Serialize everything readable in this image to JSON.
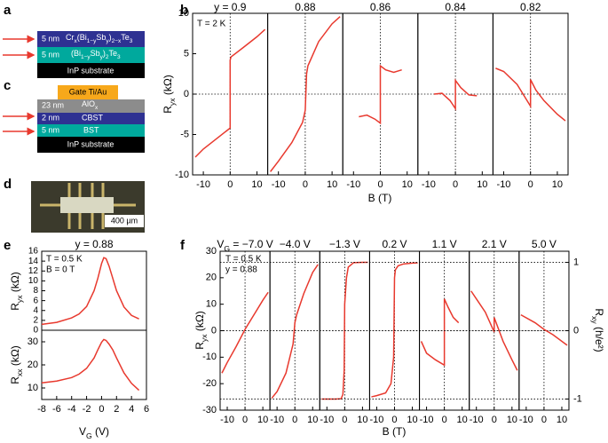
{
  "panel_a": {
    "label": "a",
    "layers": [
      {
        "thickness": "5 nm",
        "material": [
          "Cr",
          "x",
          "(Bi",
          "1−y",
          "Sb",
          "y",
          ")",
          "2−x",
          "Te",
          "3"
        ],
        "color": "#2e3192"
      },
      {
        "thickness": "5 nm",
        "material": [
          "(Bi",
          "1−y",
          "Sb",
          "y",
          ")",
          "2",
          "Te",
          "3"
        ],
        "color": "#00a99d"
      },
      {
        "material": "InP substrate",
        "color": "#000000"
      }
    ]
  },
  "panel_c": {
    "label": "c",
    "gate": "Gate Ti/Au",
    "layers": [
      {
        "thickness": "23 nm",
        "material": [
          "AlO",
          "x"
        ],
        "color": "#8c8c8c"
      },
      {
        "thickness": "2 nm",
        "material": "CBST",
        "color": "#2e3192"
      },
      {
        "thickness": "5 nm",
        "material": "BST",
        "color": "#00a99d"
      },
      {
        "material": "InP substrate",
        "color": "#000000"
      }
    ]
  },
  "panel_d": {
    "label": "d",
    "scale_bar": "400 µm"
  },
  "chart_data": [
    {
      "type": "line",
      "panel": "b",
      "title": "y = 0.9",
      "annotations": [
        "T = 2 K"
      ],
      "xlabel": "B (T)",
      "ylabel": [
        "R",
        "yx",
        " (kΩ)"
      ],
      "x": [
        -13,
        -10,
        -5,
        0,
        0,
        0.3,
        5,
        10,
        13
      ],
      "values": [
        -7.8,
        -6.8,
        -5.5,
        -4.2,
        4.2,
        4.6,
        5.8,
        7.1,
        8.0
      ],
      "color": "#e8392e",
      "xlim": [
        -14,
        14
      ],
      "xticks": [
        -10,
        0,
        10
      ],
      "ylim": [
        -10,
        10
      ],
      "yticks": [
        -10,
        -5,
        0,
        5,
        10
      ],
      "zero_lines": true
    },
    {
      "type": "line",
      "title": "0.88",
      "x": [
        -13,
        -10,
        -5,
        -1,
        0,
        0.5,
        1,
        5,
        10,
        13
      ],
      "values": [
        -9.6,
        -8.3,
        -6,
        -3.5,
        -2,
        2.5,
        3.5,
        6.5,
        8.7,
        9.6
      ],
      "color": "#e8392e",
      "xlim": [
        -14,
        14
      ],
      "xticks": [
        -10,
        0,
        10
      ],
      "ylim": [
        -10,
        10
      ],
      "zero_lines": true
    },
    {
      "type": "line",
      "title": "0.86",
      "x": [
        -8,
        -5,
        -2,
        0,
        0,
        2,
        5,
        8
      ],
      "values": [
        -2.8,
        -2.6,
        -3.1,
        -3.6,
        3.5,
        3.0,
        2.7,
        3.0
      ],
      "color": "#e8392e",
      "xlim": [
        -14,
        14
      ],
      "xticks": [
        -10,
        0,
        10
      ],
      "ylim": [
        -10,
        10
      ],
      "zero_lines": true
    },
    {
      "type": "line",
      "title": "0.84",
      "x": [
        -8,
        -5,
        -2,
        0,
        0,
        2,
        5,
        8
      ],
      "values": [
        0,
        0.1,
        -0.8,
        -1.8,
        1.7,
        0.8,
        -0.1,
        -0.2
      ],
      "color": "#e8392e",
      "xlim": [
        -14,
        14
      ],
      "xticks": [
        -10,
        0,
        10
      ],
      "ylim": [
        -10,
        10
      ],
      "zero_lines": true
    },
    {
      "type": "line",
      "title": "0.82",
      "x": [
        -13,
        -10,
        -5,
        0,
        0,
        2,
        5,
        10,
        13
      ],
      "values": [
        3.2,
        2.8,
        1.2,
        -1.5,
        1.8,
        0.5,
        -0.8,
        -2.5,
        -3.3
      ],
      "color": "#e8392e",
      "xlim": [
        -14,
        14
      ],
      "xticks": [
        -10,
        0,
        10
      ],
      "ylim": [
        -10,
        10
      ],
      "zero_lines": true
    },
    {
      "type": "line",
      "panel": "e",
      "title": "y = 0.88",
      "annotations": [
        "T = 0.5 K",
        "B = 0 T"
      ],
      "ylabel": [
        "R",
        "yx",
        " (kΩ)"
      ],
      "x": [
        -8,
        -6,
        -4,
        -3,
        -2,
        -1,
        -0.5,
        0,
        0.3,
        0.6,
        1,
        1.5,
        2,
        3,
        4,
        5
      ],
      "values": [
        1.2,
        1.6,
        2.5,
        3.3,
        4.8,
        8,
        10.5,
        13.5,
        14.7,
        14.5,
        13,
        10.5,
        8,
        4.7,
        3,
        2.3
      ],
      "color": "#e8392e",
      "xlim": [
        -8,
        6
      ],
      "ylim": [
        0,
        16
      ],
      "yticks": [
        0,
        2,
        4,
        6,
        8,
        10,
        12,
        14,
        16
      ]
    },
    {
      "type": "line",
      "xlabel": [
        "V",
        "G",
        " (V)"
      ],
      "ylabel": [
        "R",
        "xx",
        " (kΩ)"
      ],
      "x": [
        -8,
        -6,
        -4,
        -3,
        -2,
        -1,
        -0.5,
        0,
        0.3,
        0.6,
        1,
        1.5,
        2,
        3,
        4,
        5
      ],
      "values": [
        12.2,
        13,
        14.5,
        16,
        18.5,
        23,
        26.5,
        29.8,
        31,
        30.6,
        29,
        26.5,
        23,
        16.5,
        12,
        9
      ],
      "color": "#e8392e",
      "xlim": [
        -8,
        6
      ],
      "xticks": [
        -8,
        -6,
        -4,
        -2,
        0,
        2,
        4,
        6
      ],
      "ylim": [
        5,
        35
      ],
      "yticks": [
        10,
        20,
        30
      ]
    },
    {
      "type": "line",
      "panel": "f",
      "title": [
        "V",
        "G",
        " = −7.0 V"
      ],
      "annotations": [
        "T = 0.5 K",
        "y = 0.88"
      ],
      "xlabel": "B (T)",
      "ylabel": [
        "R",
        "yx",
        " (kΩ)"
      ],
      "x": [
        -13,
        -10,
        -5,
        0,
        5,
        10,
        13
      ],
      "values": [
        -16,
        -12,
        -6,
        0.5,
        6,
        11.5,
        14.5
      ],
      "color": "#e8392e",
      "xlim": [
        -14,
        14
      ],
      "xticks": [
        -10,
        0,
        10
      ],
      "ylim": [
        -30,
        30
      ],
      "yticks": [
        -30,
        -20,
        -10,
        0,
        10,
        20,
        30
      ],
      "zero_lines": true
    },
    {
      "type": "line",
      "title": "−4.0 V",
      "x": [
        -13,
        -10,
        -5,
        -1,
        0,
        1,
        5,
        10,
        13
      ],
      "values": [
        -25.5,
        -23,
        -16,
        -5,
        3,
        6,
        14,
        22,
        25
      ],
      "color": "#e8392e",
      "xlim": [
        -14,
        14
      ],
      "xticks": [
        -10,
        0,
        10
      ],
      "ylim": [
        -30,
        30
      ],
      "zero_lines": true
    },
    {
      "type": "line",
      "title": "−1.3 V",
      "x": [
        -13,
        -10,
        -5,
        -2,
        -1,
        -0.3,
        0,
        0.5,
        1,
        2,
        5,
        10,
        13
      ],
      "values": [
        -25.8,
        -25.8,
        -25.8,
        -25.7,
        -24,
        -15,
        10,
        15,
        20,
        24,
        25.7,
        25.8,
        25.8
      ],
      "color": "#e8392e",
      "xlim": [
        -14,
        14
      ],
      "xticks": [
        -10,
        0,
        10
      ],
      "ylim": [
        -30,
        30
      ],
      "zero_lines": true
    },
    {
      "type": "line",
      "title": "0.2 V",
      "x": [
        -13,
        -10,
        -5,
        -2,
        -0.5,
        0,
        0.5,
        2,
        5,
        10,
        13
      ],
      "values": [
        -25,
        -24.5,
        -23.5,
        -20,
        -10,
        20,
        23,
        24.5,
        25.2,
        25.5,
        25.6
      ],
      "color": "#e8392e",
      "xlim": [
        -14,
        14
      ],
      "xticks": [
        -10,
        0,
        10
      ],
      "ylim": [
        -30,
        30
      ],
      "zero_lines": true
    },
    {
      "type": "line",
      "title": "1.1 V",
      "x": [
        -13,
        -10,
        -5,
        0,
        0,
        2,
        5,
        8
      ],
      "values": [
        -4,
        -8.5,
        -11,
        -13,
        12,
        9,
        5,
        3
      ],
      "color": "#e8392e",
      "xlim": [
        -14,
        14
      ],
      "xticks": [
        -10,
        0,
        10
      ],
      "ylim": [
        -30,
        30
      ],
      "zero_lines": true
    },
    {
      "type": "line",
      "title": "2.1 V",
      "x": [
        -13,
        -10,
        -5,
        0,
        0,
        5,
        10,
        13
      ],
      "values": [
        15,
        12,
        7,
        -0.5,
        5,
        -4,
        -11,
        -15
      ],
      "color": "#e8392e",
      "xlim": [
        -14,
        14
      ],
      "xticks": [
        -10,
        0,
        10
      ],
      "ylim": [
        -30,
        30
      ],
      "zero_lines": true
    },
    {
      "type": "line",
      "title": "5.0 V",
      "y2label": [
        "R",
        "xy",
        " (h/e²)"
      ],
      "x": [
        -13,
        -5,
        0,
        5,
        13
      ],
      "values": [
        6,
        3,
        0.5,
        -1.5,
        -5.5
      ],
      "color": "#e8392e",
      "xlim": [
        -14,
        14
      ],
      "xticks": [
        -10,
        0,
        10
      ],
      "ylim": [
        -30,
        30
      ],
      "zero_lines": true,
      "y2lim": [
        -1.163,
        1.163
      ],
      "y2ticks": [
        -1,
        0,
        1
      ],
      "grid": true
    }
  ]
}
